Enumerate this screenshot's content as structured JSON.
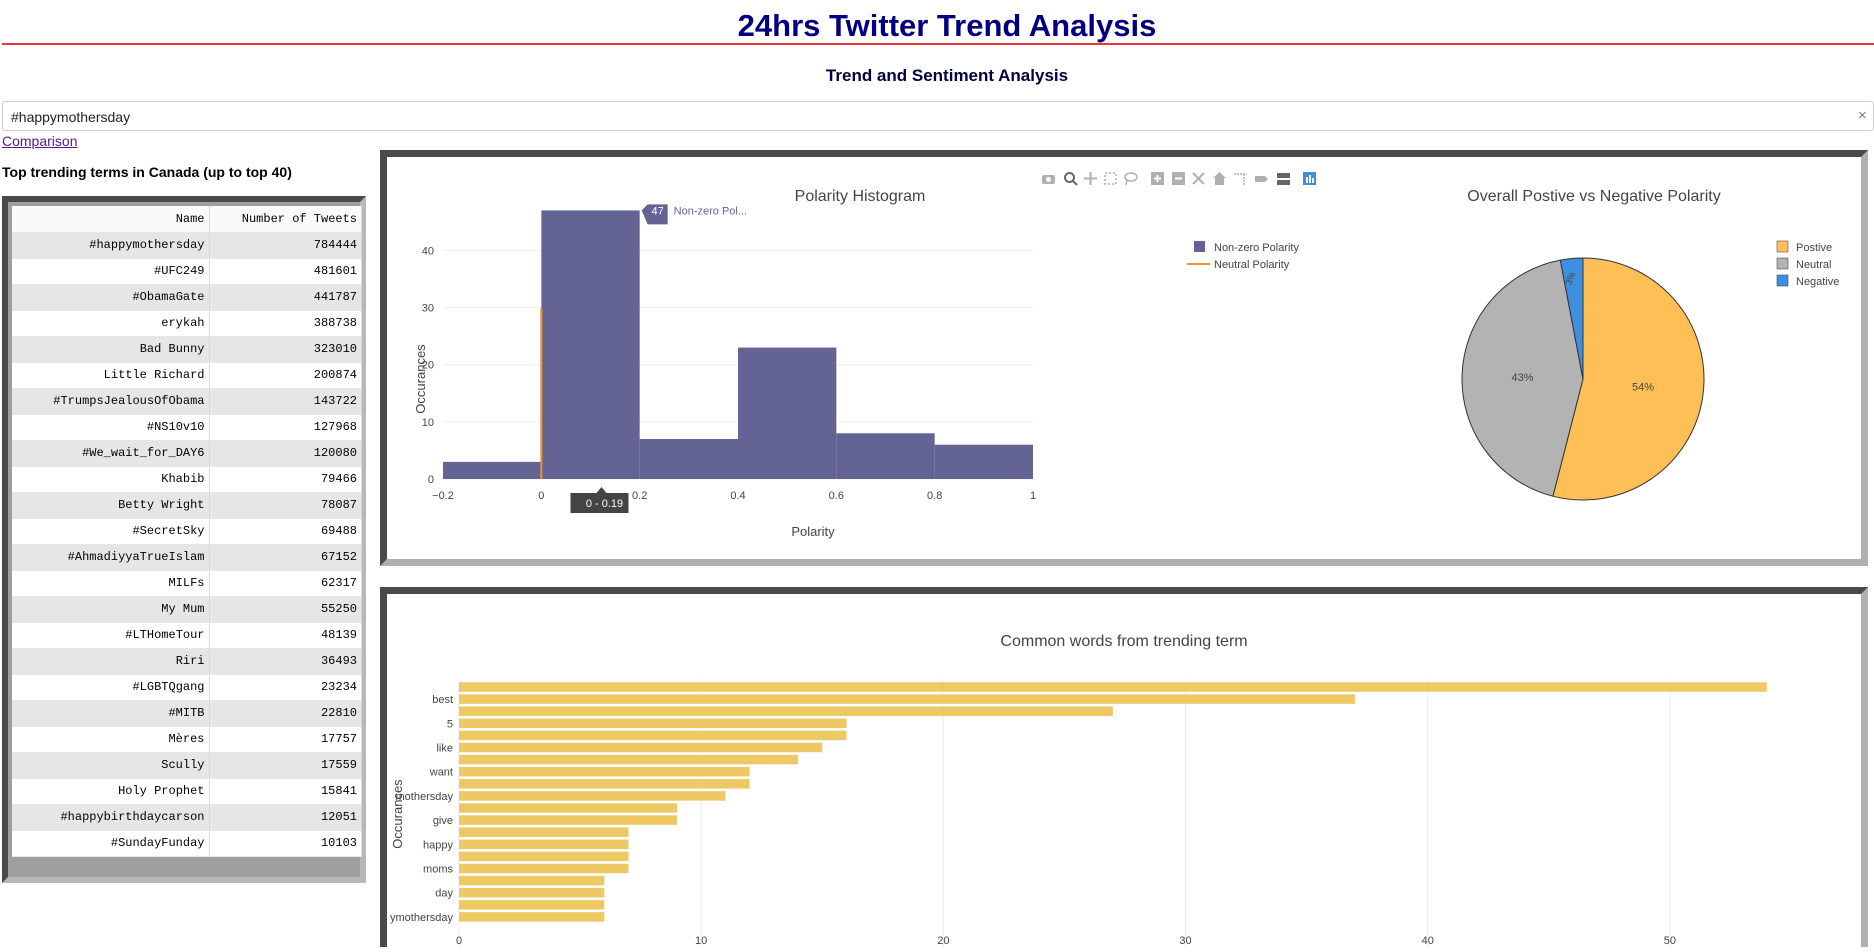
{
  "header": {
    "title": "24hrs Twitter Trend Analysis",
    "subtitle": "Trend and Sentiment Analysis"
  },
  "search": {
    "value": "#happymothersday",
    "clear_glyph": "×"
  },
  "nav": {
    "comparison_link": "Comparison"
  },
  "trends_table": {
    "heading": "Top trending terms in Canada (up to top 40)",
    "columns": [
      "Name",
      "Number of Tweets"
    ],
    "rows": [
      [
        "#happymothersday",
        "784444"
      ],
      [
        "#UFC249",
        "481601"
      ],
      [
        "#ObamaGate",
        "441787"
      ],
      [
        "erykah",
        "388738"
      ],
      [
        "Bad Bunny",
        "323010"
      ],
      [
        "Little Richard",
        "200874"
      ],
      [
        "#TrumpsJealousOfObama",
        "143722"
      ],
      [
        "#NS10v10",
        "127968"
      ],
      [
        "#We_wait_for_DAY6",
        "120080"
      ],
      [
        "Khabib",
        "79466"
      ],
      [
        "Betty Wright",
        "78087"
      ],
      [
        "#SecretSky",
        "69488"
      ],
      [
        "#AhmadiyyaTrueIslam",
        "67152"
      ],
      [
        "MILFs",
        "62317"
      ],
      [
        "My Mum",
        "55250"
      ],
      [
        "#LTHomeTour",
        "48139"
      ],
      [
        "Riri",
        "36493"
      ],
      [
        "#LGBTQgang",
        "23234"
      ],
      [
        "#MITB",
        "22810"
      ],
      [
        "Mères",
        "17757"
      ],
      [
        "Scully",
        "17559"
      ],
      [
        "Holy Prophet",
        "15841"
      ],
      [
        "#happybirthdaycarson",
        "12051"
      ],
      [
        "#SundayFunday",
        "10103"
      ]
    ]
  },
  "modebar": {
    "icons": [
      "camera-icon",
      "zoom-icon",
      "pan-icon",
      "box-select-icon",
      "lasso-icon",
      "zoom-in-icon",
      "zoom-out-icon",
      "autoscale-icon",
      "reset-axes-icon",
      "spike-lines-icon",
      "hover-closest-icon",
      "hover-compare-icon",
      "plotly-logo-icon"
    ]
  },
  "colors": {
    "title": "#000080",
    "rule": "#e53935",
    "hist_bar": "#636394",
    "neutral_line": "#f28e2b",
    "pie_positive": "#ffbf57",
    "pie_neutral": "#b3b3b3",
    "pie_negative": "#3f8fe0",
    "word_bar": "#eec863"
  },
  "chart_data": [
    {
      "type": "bar",
      "title": "Polarity Histogram",
      "xlabel": "Polarity",
      "ylabel": "Occurances",
      "xlim": [
        -0.2,
        1
      ],
      "ylim": [
        0,
        49
      ],
      "x_ticks": [
        "−0.2",
        "0",
        "0.2",
        "0.4",
        "0.6",
        "0.8",
        "1"
      ],
      "y_ticks": [
        0,
        10,
        20,
        30,
        40
      ],
      "grid": true,
      "legend_position": "top-right",
      "series": [
        {
          "name": "Non-zero Polarity",
          "bins": [
            {
              "x0": -0.2,
              "x1": 0.0,
              "count": 3
            },
            {
              "x0": 0.0,
              "x1": 0.2,
              "count": 47
            },
            {
              "x0": 0.2,
              "x1": 0.4,
              "count": 7
            },
            {
              "x0": 0.4,
              "x1": 0.6,
              "count": 23
            },
            {
              "x0": 0.6,
              "x1": 0.8,
              "count": 8
            },
            {
              "x0": 0.8,
              "x1": 1.0,
              "count": 6
            }
          ]
        },
        {
          "name": "Neutral Polarity",
          "line": {
            "x": 0,
            "y0": 0,
            "y1": 30
          }
        }
      ],
      "hover": {
        "value": "47",
        "label": "Non-zero Pol...",
        "range": "0 - 0.19"
      }
    },
    {
      "type": "pie",
      "title": "Overall Postive vs Negative Polarity",
      "legend_position": "right",
      "slices": [
        {
          "label": "Postive",
          "value": 54,
          "text": "54%"
        },
        {
          "label": "Neutral",
          "value": 43,
          "text": "43%"
        },
        {
          "label": "Negative",
          "value": 3,
          "text": "3%"
        }
      ]
    },
    {
      "type": "bar",
      "orientation": "horizontal",
      "title": "Common words from trending term",
      "ylabel": "Occurances",
      "xlim": [
        0,
        55
      ],
      "x_ticks": [
        0,
        10,
        20,
        30,
        40,
        50
      ],
      "grid": true,
      "categories": [
        "",
        "best",
        "",
        "5",
        "",
        "like",
        "",
        "want",
        "",
        "mothersday",
        "",
        "give",
        "",
        "happy",
        "",
        "moms",
        "",
        "day",
        "",
        "ymothersday"
      ],
      "values": [
        54,
        37,
        27,
        16,
        16,
        15,
        14,
        12,
        12,
        11,
        9,
        9,
        7,
        7,
        7,
        7,
        6,
        6,
        6,
        6
      ]
    }
  ]
}
